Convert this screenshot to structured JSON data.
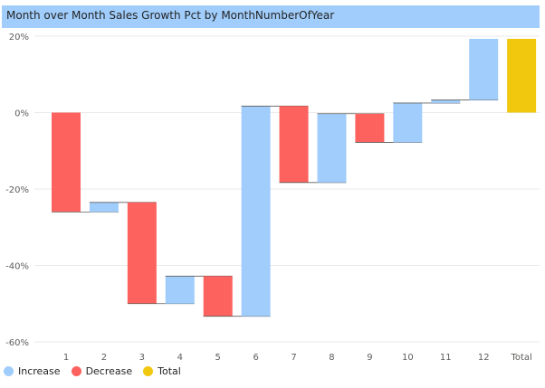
{
  "title": "Month over Month Sales Growth Pct by MonthNumberOfYear",
  "legend": {
    "increase": "Increase",
    "decrease": "Decrease",
    "total": "Total"
  },
  "colors": {
    "increase": "#a0cdfc",
    "decrease": "#fd625e",
    "total": "#f2c80f",
    "gridline": "#eaeaea",
    "connector": "#605e5c"
  },
  "chart_data": {
    "type": "waterfall",
    "title": "Month over Month Sales Growth Pct by MonthNumberOfYear",
    "xlabel": "",
    "ylabel": "",
    "ylim": [
      -60,
      20
    ],
    "yticks": [
      20,
      0,
      -20,
      -40,
      -60
    ],
    "ytick_labels": [
      "20%",
      "0%",
      "-20%",
      "-40%",
      "-60%"
    ],
    "categories": [
      "1",
      "2",
      "3",
      "4",
      "5",
      "6",
      "7",
      "8",
      "9",
      "10",
      "11",
      "12",
      "Total"
    ],
    "deltas": [
      -26.0,
      2.5,
      -26.5,
      7.2,
      -10.5,
      55.0,
      -20.0,
      18.0,
      -7.5,
      10.3,
      0.8,
      16.0
    ],
    "bars": [
      {
        "label": "1",
        "start": 0.0,
        "end": -26.0,
        "kind": "decrease"
      },
      {
        "label": "2",
        "start": -26.0,
        "end": -23.5,
        "kind": "increase"
      },
      {
        "label": "3",
        "start": -23.5,
        "end": -50.0,
        "kind": "decrease"
      },
      {
        "label": "4",
        "start": -50.0,
        "end": -42.8,
        "kind": "increase"
      },
      {
        "label": "5",
        "start": -42.8,
        "end": -53.3,
        "kind": "decrease"
      },
      {
        "label": "6",
        "start": -53.3,
        "end": 1.7,
        "kind": "increase"
      },
      {
        "label": "7",
        "start": 1.7,
        "end": -18.3,
        "kind": "decrease"
      },
      {
        "label": "8",
        "start": -18.3,
        "end": -0.3,
        "kind": "increase"
      },
      {
        "label": "9",
        "start": -0.3,
        "end": -7.8,
        "kind": "decrease"
      },
      {
        "label": "10",
        "start": -7.8,
        "end": 2.5,
        "kind": "increase"
      },
      {
        "label": "11",
        "start": 2.5,
        "end": 3.3,
        "kind": "increase"
      },
      {
        "label": "12",
        "start": 3.3,
        "end": 19.3,
        "kind": "increase"
      },
      {
        "label": "Total",
        "start": 0.0,
        "end": 19.3,
        "kind": "total"
      }
    ],
    "grid": true,
    "legend_position": "bottom-left"
  }
}
